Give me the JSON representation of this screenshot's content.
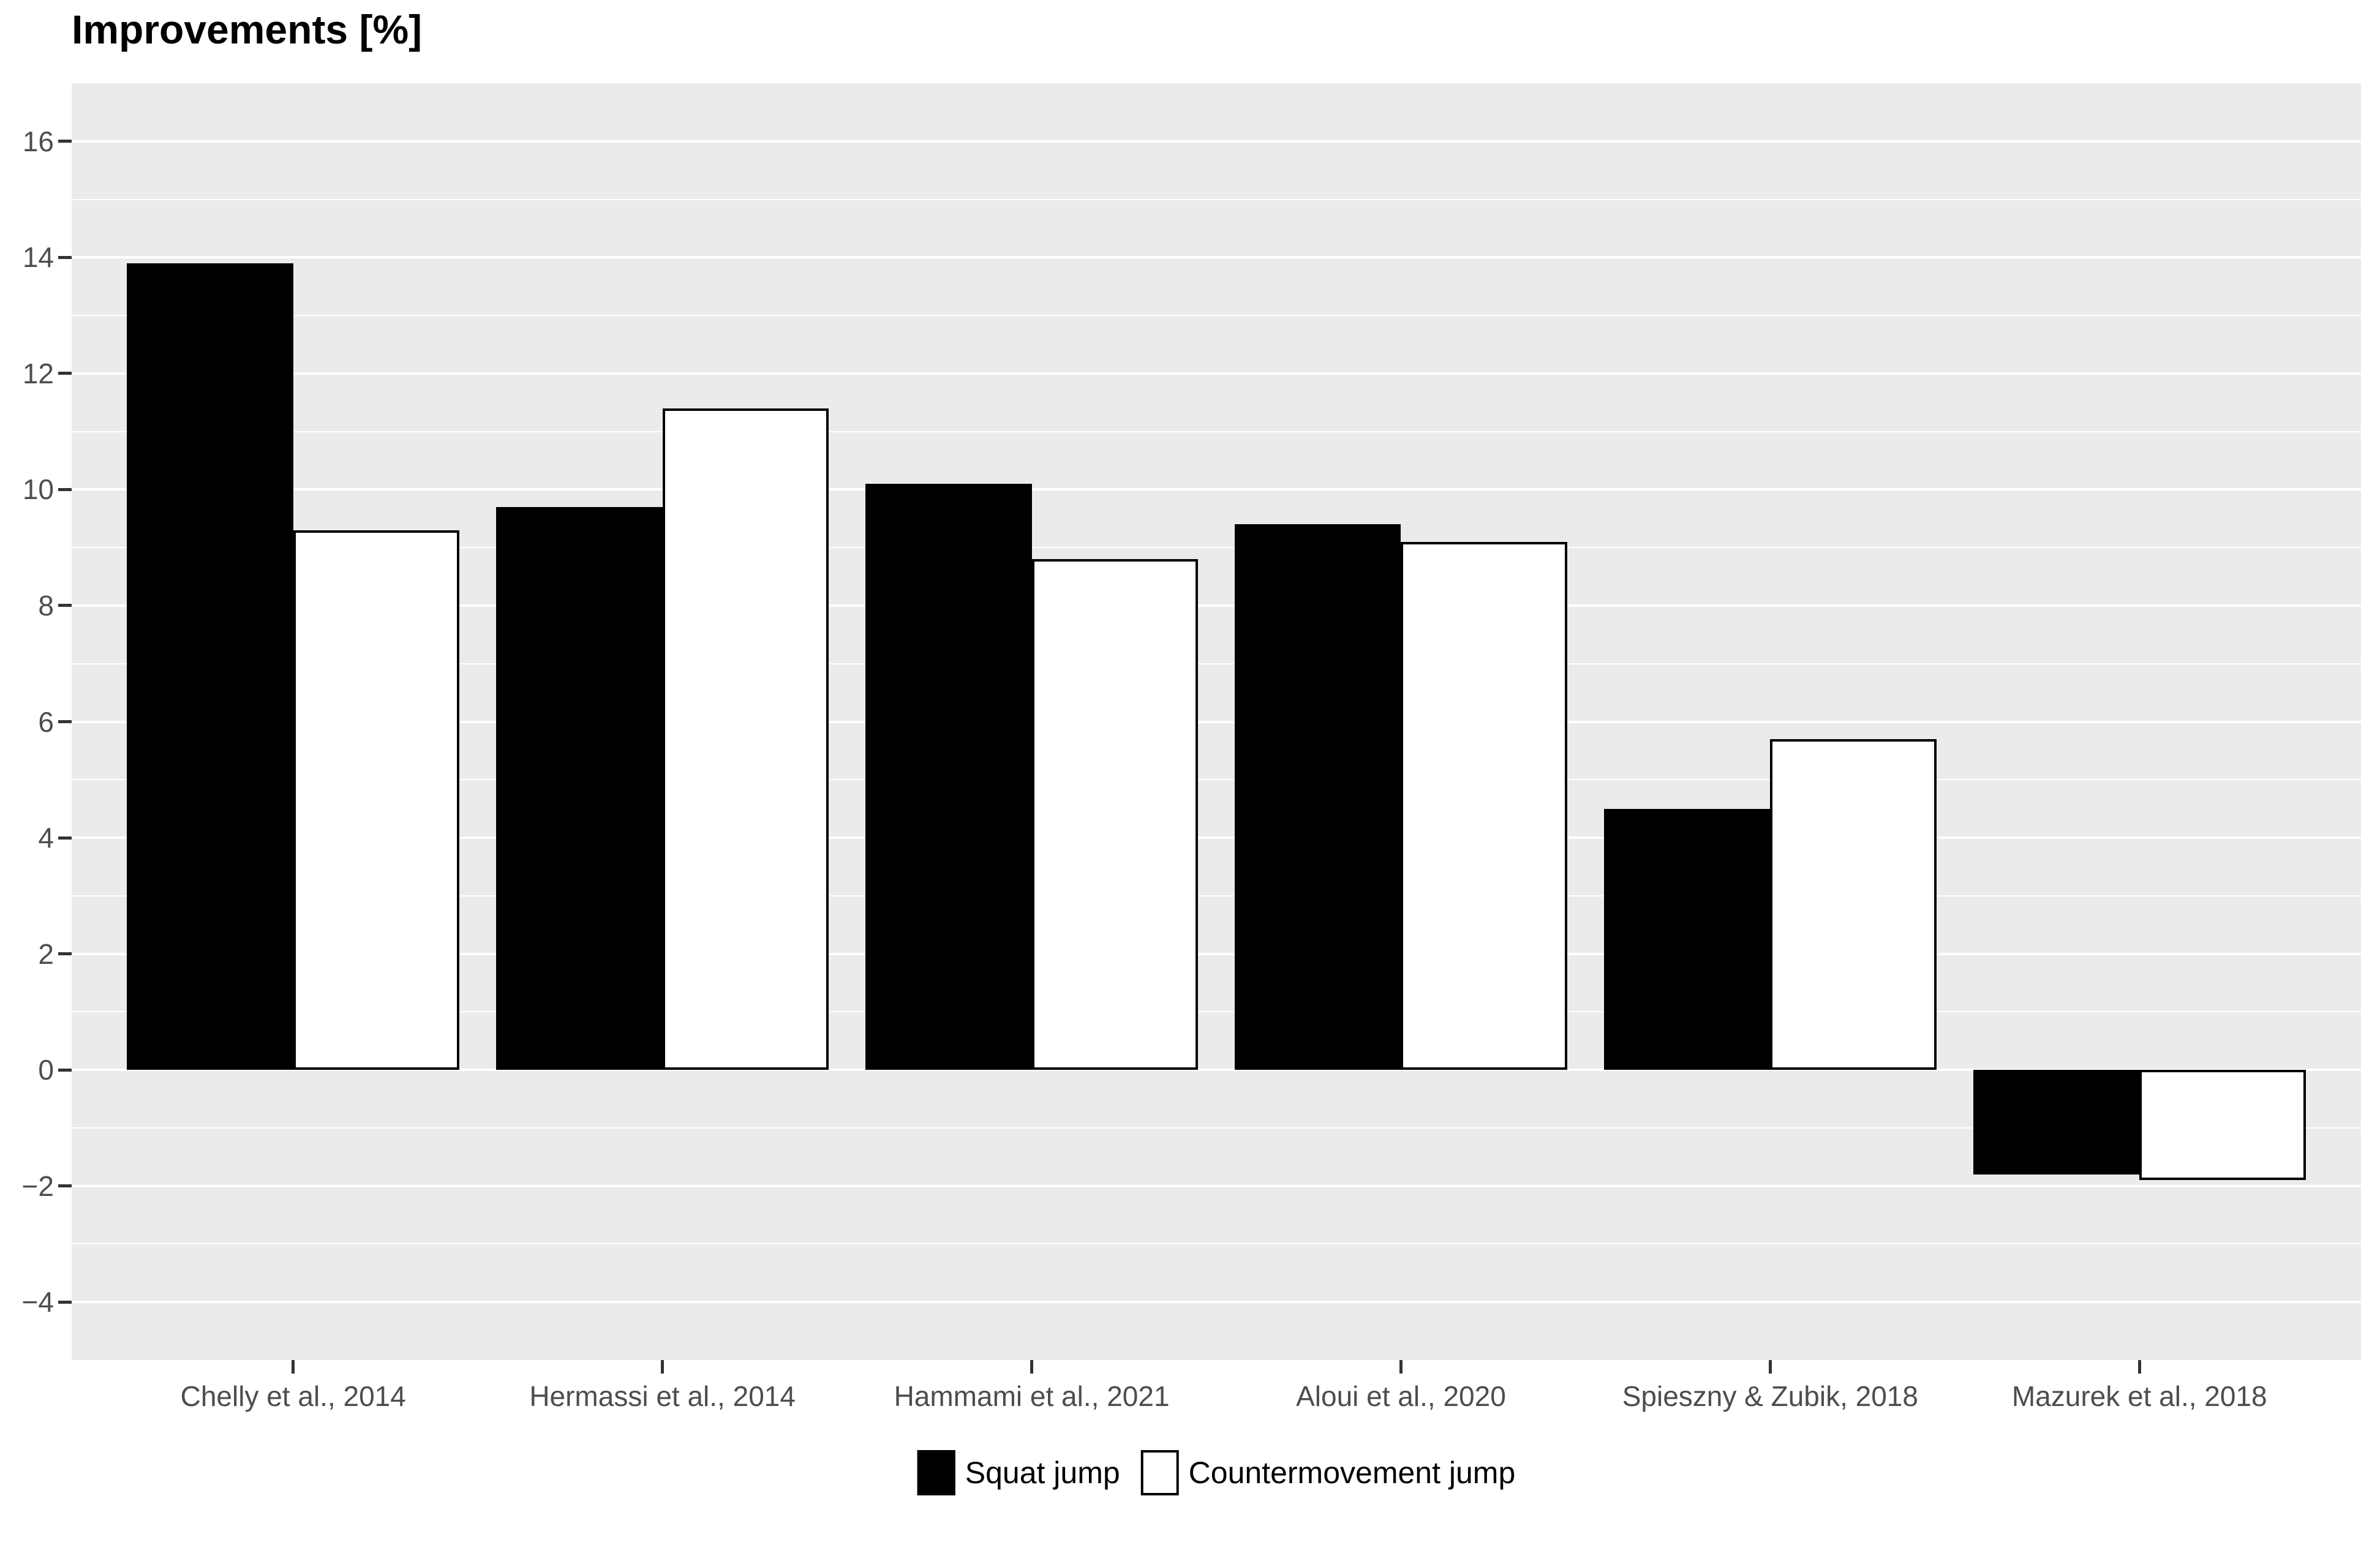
{
  "chart_data": {
    "type": "bar",
    "title": "Improvements [%]",
    "categories": [
      "Chelly et al., 2014",
      "Hermassi et al., 2014",
      "Hammami et al., 2021",
      "Aloui et al., 2020",
      "Spieszny & Zubik, 2018",
      "Mazurek et al., 2018"
    ],
    "series": [
      {
        "name": "Squat jump",
        "fill": "#000000",
        "values": [
          13.9,
          9.7,
          10.1,
          9.4,
          4.5,
          -1.8
        ]
      },
      {
        "name": "Countermovement jump",
        "fill": "#FFFFFF",
        "values": [
          9.3,
          11.4,
          8.8,
          9.1,
          5.7,
          -1.9
        ]
      }
    ],
    "ylim": [
      -5,
      17
    ],
    "yticks": [
      16,
      14,
      12,
      10,
      8,
      6,
      4,
      2,
      0,
      -2,
      -4
    ],
    "yticks_minor": [
      15,
      13,
      11,
      9,
      7,
      5,
      3,
      1,
      -1,
      -3
    ],
    "xlabel": "",
    "ylabel": "",
    "grid": "on",
    "legend_position": "bottom",
    "panel_bg": "#EBEBEB",
    "gridline_color": "#FFFFFF",
    "bar_border_color": "#000000",
    "axis_text_color": "#4D4D4D",
    "tick_mark_color": "#333333",
    "minus_sign": "−"
  }
}
